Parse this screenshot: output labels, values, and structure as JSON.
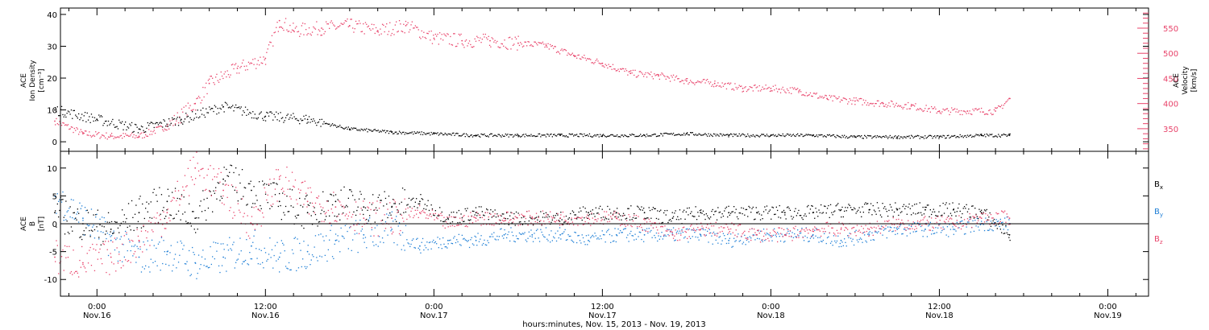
{
  "chart_data": [
    {
      "type": "scatter",
      "panel": "top",
      "ylabel_lines": [
        "ACE",
        "Ion Density",
        "[cm⁻³]"
      ],
      "ylim": [
        -3,
        42
      ],
      "yticks": [
        0,
        10,
        20,
        30,
        40
      ],
      "y2label_lines": [
        "ACE",
        "Velocity",
        "[km/s]"
      ],
      "y2lim": [
        305,
        590
      ],
      "y2ticks": [
        350,
        400,
        450,
        500,
        550
      ],
      "colors": {
        "density": "#000000",
        "velocity": "#e8436a"
      },
      "series": [
        {
          "axis": "left",
          "color": "#000000",
          "hours": [
            -3,
            0,
            3,
            6,
            9,
            12,
            15,
            18,
            21,
            24,
            27,
            30,
            33,
            36,
            39,
            42,
            45,
            48,
            51,
            54,
            57,
            60,
            63,
            65
          ],
          "values": [
            10,
            7,
            4,
            7,
            11,
            8,
            7,
            4,
            3,
            2.5,
            2,
            2,
            2,
            2,
            2,
            2.5,
            2,
            2,
            2,
            1.5,
            1.5,
            1.5,
            2,
            2
          ]
        },
        {
          "axis": "right",
          "color": "#e8436a",
          "hours": [
            -3,
            -1,
            1,
            3,
            5,
            7,
            8,
            10,
            12,
            13,
            14,
            16,
            18,
            20,
            22,
            24,
            26,
            28,
            30,
            32,
            34,
            36,
            38,
            40,
            42,
            44,
            46,
            48,
            50,
            52,
            54,
            56,
            58,
            60,
            62,
            64,
            65
          ],
          "values": [
            365,
            340,
            335,
            335,
            355,
            400,
            440,
            470,
            490,
            565,
            545,
            550,
            555,
            545,
            555,
            530,
            525,
            525,
            520,
            515,
            495,
            480,
            460,
            455,
            445,
            440,
            430,
            430,
            425,
            410,
            405,
            400,
            395,
            385,
            385,
            385,
            410
          ]
        }
      ]
    },
    {
      "type": "scatter",
      "panel": "bottom",
      "ylabel_lines": [
        "ACE",
        "B",
        "[nT]"
      ],
      "ylim": [
        -13,
        13
      ],
      "yticks": [
        -10,
        -5,
        0,
        5,
        10
      ],
      "legend": [
        {
          "label": "B",
          "sub": "x",
          "color": "#000000"
        },
        {
          "label": "B",
          "sub": "y",
          "color": "#1f7fd6"
        },
        {
          "label": "B",
          "sub": "z",
          "color": "#e8436a"
        }
      ],
      "series": [
        {
          "name": "Bx",
          "color": "#000000",
          "hours": [
            -3,
            -1,
            1,
            3,
            5,
            7,
            9,
            11,
            13,
            15,
            17,
            19,
            21,
            23,
            25,
            27,
            29,
            31,
            33,
            35,
            37,
            39,
            41,
            43,
            45,
            47,
            49,
            51,
            53,
            55,
            57,
            59,
            61,
            63,
            65
          ],
          "values": [
            2,
            0,
            -1,
            2,
            4,
            1,
            8,
            6,
            4,
            2,
            4,
            3,
            3,
            4,
            1,
            2,
            1,
            1,
            1,
            2,
            2,
            2,
            1,
            2,
            2,
            2,
            2,
            2,
            2.5,
            2.5,
            2.5,
            2.5,
            2.5,
            2,
            -2
          ]
        },
        {
          "name": "By",
          "color": "#1f7fd6",
          "hours": [
            -3,
            -1,
            1,
            3,
            5,
            7,
            9,
            11,
            13,
            15,
            17,
            19,
            21,
            23,
            25,
            27,
            29,
            31,
            33,
            35,
            37,
            39,
            41,
            43,
            45,
            47,
            49,
            51,
            53,
            55,
            57,
            59,
            61,
            63,
            65
          ],
          "values": [
            5,
            1,
            -3,
            -6,
            -5,
            -7,
            -6,
            -4,
            -6,
            -5,
            -3,
            -2,
            -1,
            -4,
            -3,
            -3,
            -2,
            -2,
            -2,
            -3,
            -2,
            -2,
            -2,
            -2,
            -3,
            -2,
            -2,
            -2,
            -3,
            -2,
            -1,
            -1,
            -1,
            0,
            0
          ]
        },
        {
          "name": "Bz",
          "color": "#e8436a",
          "hours": [
            -3,
            -1,
            1,
            3,
            5,
            7,
            9,
            11,
            13,
            15,
            17,
            19,
            21,
            23,
            25,
            27,
            29,
            31,
            33,
            35,
            37,
            39,
            41,
            43,
            45,
            47,
            49,
            51,
            53,
            55,
            57,
            59,
            61,
            63,
            65
          ],
          "values": [
            -6,
            -7,
            -6,
            -3,
            2,
            10,
            6,
            0,
            8,
            4,
            3,
            1,
            1,
            2,
            0,
            1,
            1,
            1,
            1,
            1,
            1,
            0,
            -2,
            -1,
            -1,
            -2,
            -2,
            -1,
            -1,
            -1,
            0,
            0,
            0,
            1,
            1
          ]
        }
      ]
    }
  ],
  "x_axis": {
    "ticks": [
      {
        "hour": 0,
        "time": "0:00",
        "date": "Nov.16"
      },
      {
        "hour": 12,
        "time": "12:00",
        "date": "Nov.16"
      },
      {
        "hour": 24,
        "time": "0:00",
        "date": "Nov.17"
      },
      {
        "hour": 36,
        "time": "12:00",
        "date": "Nov.17"
      },
      {
        "hour": 48,
        "time": "0:00",
        "date": "Nov.18"
      },
      {
        "hour": 60,
        "time": "12:00",
        "date": "Nov.18"
      },
      {
        "hour": 72,
        "time": "0:00",
        "date": "Nov.19"
      }
    ],
    "xlim_hours": [
      -2.6,
      74.9
    ],
    "label": "hours:minutes, Nov. 15, 2013 - Nov. 19, 2013"
  }
}
